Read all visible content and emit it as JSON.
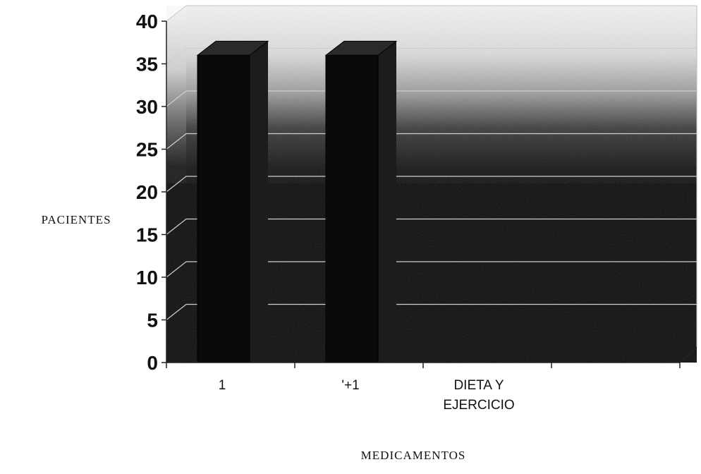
{
  "chart_data": {
    "type": "bar",
    "categories": [
      "1",
      "'+1",
      "DIETA Y EJERCICIO",
      ""
    ],
    "category_lines": [
      [
        "1"
      ],
      [
        "'+1"
      ],
      [
        "DIETA Y",
        "EJERCICIO"
      ],
      []
    ],
    "values": [
      36,
      36,
      0,
      0
    ],
    "title": "",
    "xlabel": "MEDICAMENTOS",
    "ylabel": "PACIENTES",
    "ylim": [
      0,
      40
    ],
    "yticks": [
      0,
      5,
      10,
      15,
      20,
      25,
      30,
      35,
      40
    ],
    "grid": true,
    "legend": "none",
    "style": "3d",
    "colors": {
      "bar_front": "#0a0a0a",
      "bar_side": "#1c1c1c",
      "bar_top": "#2a2a2a",
      "back_wall": "#1a1a1a",
      "floor": "#0d0d0d",
      "gridline": "#cfcfcf",
      "axis": "#222222"
    }
  }
}
